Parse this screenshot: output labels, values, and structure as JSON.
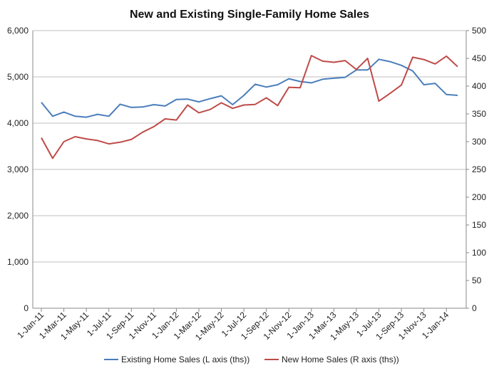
{
  "chart_data": {
    "type": "line",
    "title": "New and Existing Single-Family Home Sales",
    "x": [
      "1-Jan-11",
      "1-Feb-11",
      "1-Mar-11",
      "1-Apr-11",
      "1-May-11",
      "1-Jun-11",
      "1-Jul-11",
      "1-Aug-11",
      "1-Sep-11",
      "1-Oct-11",
      "1-Nov-11",
      "1-Dec-11",
      "1-Jan-12",
      "1-Feb-12",
      "1-Mar-12",
      "1-Apr-12",
      "1-May-12",
      "1-Jun-12",
      "1-Jul-12",
      "1-Aug-12",
      "1-Sep-12",
      "1-Oct-12",
      "1-Nov-12",
      "1-Dec-12",
      "1-Jan-13",
      "1-Feb-13",
      "1-Mar-13",
      "1-Apr-13",
      "1-May-13",
      "1-Jun-13",
      "1-Jul-13",
      "1-Aug-13",
      "1-Sep-13",
      "1-Oct-13",
      "1-Nov-13",
      "1-Dec-13",
      "1-Jan-14",
      "1-Feb-14"
    ],
    "x_tick_labels": [
      "1-Jan-11",
      "1-Mar-11",
      "1-May-11",
      "1-Jul-11",
      "1-Sep-11",
      "1-Nov-11",
      "1-Jan-12",
      "1-Mar-12",
      "1-May-12",
      "1-Jul-12",
      "1-Sep-12",
      "1-Nov-12",
      "1-Jan-13",
      "1-Mar-13",
      "1-May-13",
      "1-Jul-13",
      "1-Sep-13",
      "1-Nov-13",
      "1-Jan-14"
    ],
    "y_left": {
      "ylim": [
        0,
        6000
      ],
      "ticks": [
        "0",
        "1,000",
        "2,000",
        "3,000",
        "4,000",
        "5,000",
        "6,000"
      ]
    },
    "y_right": {
      "ylim": [
        0,
        500
      ],
      "ticks": [
        "0",
        "50",
        "100",
        "150",
        "200",
        "250",
        "300",
        "350",
        "400",
        "450",
        "500"
      ]
    },
    "grid": "horizontal",
    "legend_position": "bottom",
    "series": [
      {
        "name": "Existing Home Sales (L axis (ths))",
        "axis": "left",
        "color": "#4a7ebb",
        "values": [
          4450,
          4150,
          4240,
          4150,
          4130,
          4190,
          4150,
          4410,
          4340,
          4350,
          4400,
          4370,
          4510,
          4520,
          4460,
          4530,
          4590,
          4400,
          4600,
          4840,
          4780,
          4830,
          4960,
          4900,
          4870,
          4950,
          4970,
          4990,
          5150,
          5150,
          5380,
          5330,
          5250,
          5130,
          4830,
          4860,
          4620,
          4600
        ]
      },
      {
        "name": "New Home Sales (R axis (ths))",
        "axis": "right",
        "color": "#be4b48",
        "values": [
          307,
          270,
          300,
          309,
          305,
          302,
          296,
          299,
          304,
          317,
          327,
          341,
          339,
          366,
          352,
          358,
          370,
          360,
          366,
          367,
          379,
          365,
          398,
          397,
          455,
          445,
          443,
          446,
          430,
          450,
          373,
          387,
          402,
          452,
          448,
          440,
          454,
          435
        ]
      }
    ]
  }
}
